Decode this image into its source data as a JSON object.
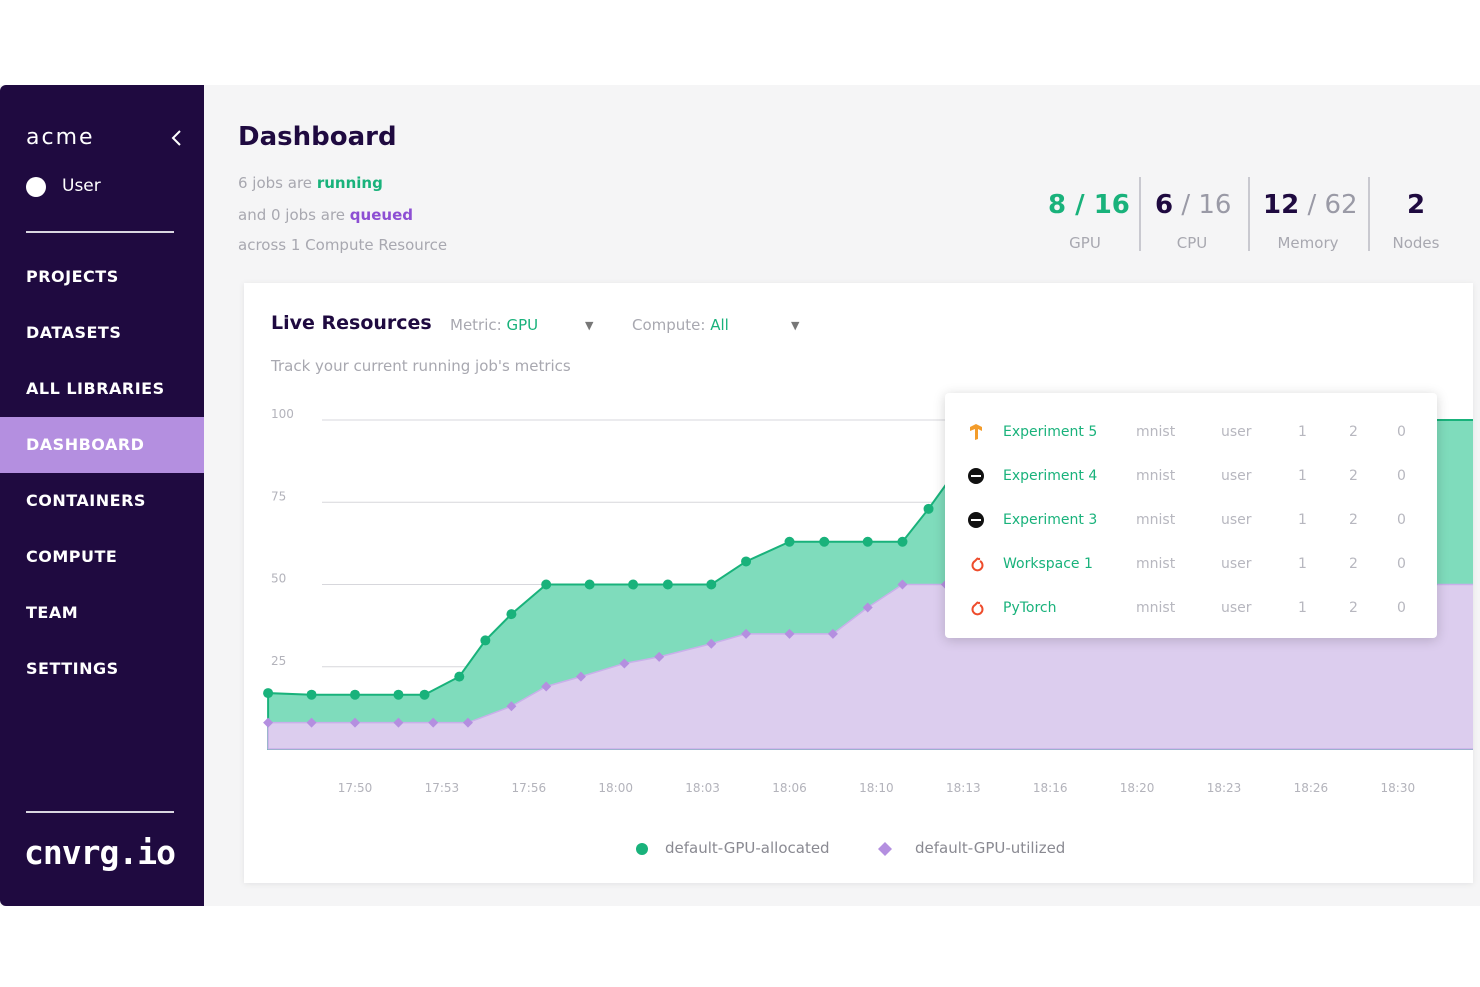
{
  "sidebar": {
    "org": "acme",
    "user": "User",
    "nav": [
      "PROJECTS",
      "DATASETS",
      "ALL LIBRARIES",
      "DASHBOARD",
      "CONTAINERS",
      "COMPUTE",
      "TEAM",
      "SETTINGS"
    ],
    "active": "DASHBOARD",
    "brand": "cnvrg.io"
  },
  "header": {
    "title": "Dashboard",
    "line1_pre": "6 jobs are",
    "line1_hl": "running",
    "line2_pre": "and 0 jobs are",
    "line2_hl": "queued",
    "line3": "across 1 Compute Resource"
  },
  "stats": {
    "gpu": {
      "used": "8",
      "sep": " / ",
      "total": "16",
      "label": "GPU"
    },
    "cpu": {
      "used": "6",
      "sep": " / ",
      "total": "16",
      "label": "CPU"
    },
    "memory": {
      "used": "12",
      "sep": " / ",
      "total": "62",
      "label": "Memory"
    },
    "nodes": {
      "value": "2",
      "label": "Nodes"
    }
  },
  "live": {
    "title": "Live Resources",
    "metric_label": "Metric:",
    "metric_value": "GPU",
    "compute_label": "Compute:",
    "compute_value": "All",
    "subtitle": "Track your current running job's metrics"
  },
  "jobs": [
    {
      "name": "Experiment 5",
      "dataset": "mnist",
      "user": "user",
      "c1": "1",
      "c2": "2",
      "c3": "0",
      "icon": "tensorflow-icon",
      "color": "#f39c2b"
    },
    {
      "name": "Experiment 4",
      "dataset": "mnist",
      "user": "user",
      "c1": "1",
      "c2": "2",
      "c3": "0",
      "icon": "cnvrg-icon",
      "color": "#111111"
    },
    {
      "name": "Experiment 3",
      "dataset": "mnist",
      "user": "user",
      "c1": "1",
      "c2": "2",
      "c3": "0",
      "icon": "cnvrg-icon",
      "color": "#111111"
    },
    {
      "name": "Workspace 1",
      "dataset": "mnist",
      "user": "user",
      "c1": "1",
      "c2": "2",
      "c3": "0",
      "icon": "pytorch-icon",
      "color": "#ee4c2c"
    },
    {
      "name": "PyTorch",
      "dataset": "mnist",
      "user": "user",
      "c1": "1",
      "c2": "2",
      "c3": "0",
      "icon": "pytorch-icon",
      "color": "#ee4c2c"
    }
  ],
  "colors": {
    "green": "#19b27b",
    "purple": "#b48fe0",
    "dark": "#1f0a40"
  },
  "chart_data": {
    "type": "area",
    "ylim": [
      0,
      100
    ],
    "yticks": [
      "100",
      "75",
      "50",
      "25",
      "0"
    ],
    "xticks": [
      "17:50",
      "17:53",
      "17:56",
      "18:00",
      "18:03",
      "18:06",
      "18:10",
      "18:13",
      "18:16",
      "18:20",
      "18:23",
      "18:26",
      "18:30"
    ],
    "grid": true,
    "legend_position": "bottom",
    "series": [
      {
        "name": "default-GPU-allocated",
        "color": "#19b27b",
        "points": [
          [
            -1.0,
            17
          ],
          [
            -0.5,
            16.5
          ],
          [
            0,
            16.5
          ],
          [
            0.5,
            16.5
          ],
          [
            0.8,
            16.5
          ],
          [
            1.2,
            22
          ],
          [
            1.5,
            33
          ],
          [
            1.8,
            41
          ],
          [
            2.2,
            50
          ],
          [
            2.7,
            50
          ],
          [
            3.2,
            50
          ],
          [
            3.6,
            50
          ],
          [
            4.1,
            50
          ],
          [
            4.5,
            57
          ],
          [
            5.0,
            63
          ],
          [
            5.4,
            63
          ],
          [
            5.9,
            63
          ],
          [
            6.3,
            63
          ],
          [
            6.6,
            73
          ],
          [
            6.9,
            84
          ],
          [
            7.2,
            100
          ],
          [
            13.0,
            100
          ]
        ]
      },
      {
        "name": "default-GPU-utilized",
        "color": "#b48fe0",
        "points": [
          [
            -1.0,
            8
          ],
          [
            -0.5,
            8
          ],
          [
            0,
            8
          ],
          [
            0.5,
            8
          ],
          [
            0.9,
            8
          ],
          [
            1.3,
            8
          ],
          [
            1.8,
            13
          ],
          [
            2.2,
            19
          ],
          [
            2.6,
            22
          ],
          [
            3.1,
            26
          ],
          [
            3.5,
            28
          ],
          [
            4.1,
            32
          ],
          [
            4.5,
            35
          ],
          [
            5.0,
            35
          ],
          [
            5.5,
            35
          ],
          [
            5.9,
            43
          ],
          [
            6.3,
            50
          ],
          [
            6.8,
            50
          ],
          [
            7.3,
            50
          ],
          [
            7.8,
            50
          ],
          [
            8.3,
            50
          ],
          [
            8.8,
            50
          ],
          [
            9.3,
            50
          ],
          [
            9.8,
            50
          ],
          [
            10.3,
            50
          ],
          [
            10.8,
            50
          ],
          [
            11.3,
            50
          ],
          [
            11.8,
            50
          ],
          [
            12.4,
            50
          ],
          [
            13.0,
            50
          ]
        ]
      }
    ]
  }
}
